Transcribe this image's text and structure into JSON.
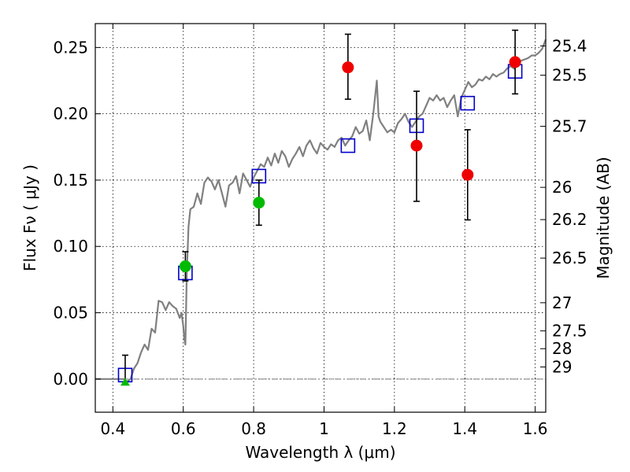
{
  "chart_data": {
    "type": "scatter",
    "xlabel": "Wavelength  λ (μm)",
    "ylabel_left": "Flux  Fν  ( μJy )",
    "ylabel_right": "Magnitude (AB)",
    "xlim": [
      0.35,
      1.63
    ],
    "ylim": [
      -0.025,
      0.268
    ],
    "x_ticks": [
      {
        "value": 0.4,
        "label": "0.4"
      },
      {
        "value": 0.6,
        "label": "0.6"
      },
      {
        "value": 0.8,
        "label": "0.8"
      },
      {
        "value": 1.0,
        "label": "1"
      },
      {
        "value": 1.2,
        "label": "1.2"
      },
      {
        "value": 1.4,
        "label": "1.4"
      },
      {
        "value": 1.6,
        "label": "1.6"
      }
    ],
    "y_ticks": [
      {
        "value": 0.0,
        "label": "0.00"
      },
      {
        "value": 0.05,
        "label": "0.05"
      },
      {
        "value": 0.1,
        "label": "0.10"
      },
      {
        "value": 0.15,
        "label": "0.15"
      },
      {
        "value": 0.2,
        "label": "0.20"
      },
      {
        "value": 0.25,
        "label": "0.25"
      }
    ],
    "mag_ticks": [
      {
        "value": 25.4,
        "label": "25.4"
      },
      {
        "value": 25.5,
        "label": "25.5"
      },
      {
        "value": 25.7,
        "label": "25.7"
      },
      {
        "value": 26,
        "label": "26"
      },
      {
        "value": 26.2,
        "label": "26.2"
      },
      {
        "value": 26.5,
        "label": "26.5"
      },
      {
        "value": 27,
        "label": "27"
      },
      {
        "value": 27.5,
        "label": "27.5"
      },
      {
        "value": 28,
        "label": "28"
      },
      {
        "value": 29,
        "label": "29"
      }
    ],
    "grid": true,
    "zero_line": true,
    "series": [
      {
        "name": "model-spectrum",
        "kind": "line",
        "color": "#808080",
        "x": [
          0.35,
          0.43,
          0.44,
          0.45,
          0.46,
          0.47,
          0.48,
          0.49,
          0.5,
          0.51,
          0.52,
          0.53,
          0.54,
          0.55,
          0.56,
          0.57,
          0.58,
          0.59,
          0.595,
          0.6,
          0.603,
          0.606,
          0.61,
          0.615,
          0.62,
          0.63,
          0.64,
          0.65,
          0.66,
          0.67,
          0.68,
          0.69,
          0.7,
          0.71,
          0.72,
          0.73,
          0.74,
          0.75,
          0.76,
          0.77,
          0.78,
          0.79,
          0.8,
          0.81,
          0.82,
          0.83,
          0.84,
          0.85,
          0.86,
          0.87,
          0.88,
          0.89,
          0.9,
          0.91,
          0.92,
          0.93,
          0.94,
          0.95,
          0.96,
          0.97,
          0.98,
          0.99,
          1.0,
          1.01,
          1.02,
          1.03,
          1.04,
          1.05,
          1.06,
          1.07,
          1.08,
          1.09,
          1.1,
          1.11,
          1.12,
          1.13,
          1.14,
          1.15,
          1.155,
          1.16,
          1.17,
          1.18,
          1.19,
          1.2,
          1.21,
          1.22,
          1.23,
          1.24,
          1.25,
          1.26,
          1.27,
          1.28,
          1.29,
          1.3,
          1.31,
          1.32,
          1.33,
          1.34,
          1.35,
          1.36,
          1.37,
          1.38,
          1.39,
          1.4,
          1.41,
          1.42,
          1.43,
          1.44,
          1.45,
          1.46,
          1.47,
          1.48,
          1.49,
          1.5,
          1.51,
          1.52,
          1.53,
          1.54,
          1.55,
          1.56,
          1.57,
          1.58,
          1.59,
          1.6,
          1.61,
          1.62,
          1.63
        ],
        "y": [
          0.0,
          0.0,
          -0.002,
          0.0,
          0.008,
          0.012,
          0.02,
          0.026,
          0.022,
          0.038,
          0.035,
          0.059,
          0.058,
          0.052,
          0.058,
          0.055,
          0.053,
          0.046,
          0.05,
          0.04,
          0.03,
          0.026,
          0.08,
          0.115,
          0.128,
          0.13,
          0.14,
          0.132,
          0.148,
          0.152,
          0.149,
          0.143,
          0.15,
          0.14,
          0.13,
          0.146,
          0.148,
          0.153,
          0.14,
          0.155,
          0.15,
          0.145,
          0.152,
          0.157,
          0.162,
          0.16,
          0.167,
          0.161,
          0.17,
          0.163,
          0.172,
          0.168,
          0.16,
          0.166,
          0.17,
          0.175,
          0.168,
          0.176,
          0.18,
          0.174,
          0.17,
          0.178,
          0.175,
          0.173,
          0.177,
          0.175,
          0.18,
          0.182,
          0.176,
          0.18,
          0.183,
          0.19,
          0.185,
          0.187,
          0.195,
          0.18,
          0.2,
          0.225,
          0.198,
          0.194,
          0.19,
          0.186,
          0.188,
          0.186,
          0.193,
          0.196,
          0.2,
          0.194,
          0.19,
          0.194,
          0.198,
          0.2,
          0.206,
          0.212,
          0.21,
          0.214,
          0.21,
          0.212,
          0.205,
          0.21,
          0.214,
          0.198,
          0.212,
          0.218,
          0.224,
          0.22,
          0.222,
          0.226,
          0.225,
          0.228,
          0.226,
          0.23,
          0.228,
          0.23,
          0.231,
          0.234,
          0.236,
          0.234,
          0.238,
          0.24,
          0.241,
          0.242,
          0.244,
          0.244,
          0.246,
          0.249,
          0.256
        ]
      },
      {
        "name": "model-bandpass",
        "kind": "open-square",
        "color": "#0000cc",
        "x": [
          0.435,
          0.606,
          0.815,
          1.068,
          1.263,
          1.408,
          1.543
        ],
        "y": [
          0.003,
          0.08,
          0.153,
          0.176,
          0.191,
          0.208,
          0.232
        ]
      },
      {
        "name": "detections-green",
        "kind": "circle",
        "color": "#00bb00",
        "x": [
          0.606,
          0.815
        ],
        "y": [
          0.085,
          0.133
        ],
        "yerr_low": [
          0.011,
          0.017
        ],
        "yerr_high": [
          0.011,
          0.017
        ]
      },
      {
        "name": "detections-red",
        "kind": "circle",
        "color": "#ee0000",
        "x": [
          1.068,
          1.263,
          1.408,
          1.543
        ],
        "y": [
          0.235,
          0.176,
          0.154,
          0.239
        ],
        "yerr_low": [
          0.024,
          0.042,
          0.034,
          0.024
        ],
        "yerr_high": [
          0.025,
          0.041,
          0.034,
          0.024
        ]
      },
      {
        "name": "upper-limit",
        "kind": "triangle",
        "color": "#00bb00",
        "x": [
          0.435
        ],
        "y": [
          -0.002
        ],
        "yerr_low": [
          0.0
        ],
        "yerr_high": [
          0.02
        ]
      }
    ]
  }
}
